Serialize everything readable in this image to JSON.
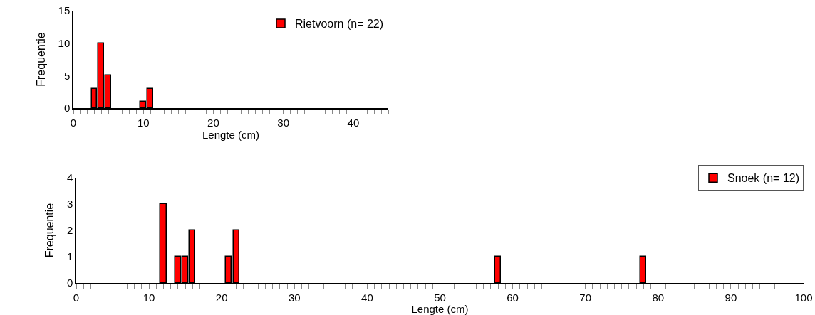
{
  "chart_data": [
    {
      "type": "bar",
      "x": [
        3,
        4,
        5,
        10,
        11
      ],
      "series": [
        {
          "name": "Rietvoorn (n= 22)",
          "color": "#ff0000",
          "values": [
            3,
            10,
            5,
            1,
            3
          ]
        }
      ],
      "xlabel": "Lengte (cm)",
      "ylabel": "Frequentie",
      "xlim": [
        0,
        45
      ],
      "ylim": [
        0,
        15
      ],
      "yticks": [
        0,
        5,
        10,
        15
      ],
      "xticks": [
        0,
        {
          "value": 1,
          "label": null
        },
        {
          "value": 2,
          "label": null
        },
        {
          "value": 3,
          "label": null
        },
        {
          "value": 4,
          "label": null
        },
        {
          "value": 5,
          "label": null
        },
        {
          "value": 6,
          "label": null
        },
        {
          "value": 7,
          "label": null
        },
        {
          "value": 8,
          "label": null
        },
        {
          "value": 9,
          "label": null
        },
        10,
        {
          "value": 11,
          "label": null
        },
        {
          "value": 12,
          "label": null
        },
        {
          "value": 13,
          "label": null
        },
        {
          "value": 14,
          "label": null
        },
        {
          "value": 15,
          "label": null
        },
        {
          "value": 16,
          "label": null
        },
        {
          "value": 17,
          "label": null
        },
        {
          "value": 18,
          "label": null
        },
        {
          "value": 19,
          "label": null
        },
        20,
        {
          "value": 21,
          "label": null
        },
        {
          "value": 22,
          "label": null
        },
        {
          "value": 23,
          "label": null
        },
        {
          "value": 24,
          "label": null
        },
        {
          "value": 25,
          "label": null
        },
        {
          "value": 26,
          "label": null
        },
        {
          "value": 27,
          "label": null
        },
        {
          "value": 28,
          "label": null
        },
        {
          "value": 29,
          "label": null
        },
        30,
        {
          "value": 31,
          "label": null
        },
        {
          "value": 32,
          "label": null
        },
        {
          "value": 33,
          "label": null
        },
        {
          "value": 34,
          "label": null
        },
        {
          "value": 35,
          "label": null
        },
        {
          "value": 36,
          "label": null
        },
        {
          "value": 37,
          "label": null
        },
        {
          "value": 38,
          "label": null
        },
        {
          "value": 39,
          "label": null
        },
        40,
        {
          "value": 41,
          "label": null
        },
        {
          "value": 42,
          "label": null
        },
        {
          "value": 43,
          "label": null
        },
        {
          "value": 44,
          "label": null
        },
        {
          "value": 45,
          "label": null
        }
      ],
      "legend": "top right"
    },
    {
      "type": "bar",
      "x": [
        12,
        14,
        15,
        16,
        21,
        22,
        58,
        78
      ],
      "series": [
        {
          "name": "Snoek (n= 12)",
          "color": "#ff0000",
          "values": [
            3,
            1,
            1,
            2,
            1,
            2,
            1,
            1
          ]
        }
      ],
      "xlabel": "Lengte (cm)",
      "ylabel": "Frequentie",
      "xlim": [
        0,
        100
      ],
      "ylim": [
        0,
        4
      ],
      "yticks": [
        0,
        1,
        2,
        3,
        4
      ],
      "xticks": [
        0,
        {
          "value": 1,
          "label": null
        },
        {
          "value": 2,
          "label": null
        },
        {
          "value": 3,
          "label": null
        },
        {
          "value": 4,
          "label": null
        },
        {
          "value": 5,
          "label": null
        },
        {
          "value": 6,
          "label": null
        },
        {
          "value": 7,
          "label": null
        },
        {
          "value": 8,
          "label": null
        },
        {
          "value": 9,
          "label": null
        },
        10,
        {
          "value": 11,
          "label": null
        },
        {
          "value": 12,
          "label": null
        },
        {
          "value": 13,
          "label": null
        },
        {
          "value": 14,
          "label": null
        },
        {
          "value": 15,
          "label": null
        },
        {
          "value": 16,
          "label": null
        },
        {
          "value": 17,
          "label": null
        },
        {
          "value": 18,
          "label": null
        },
        {
          "value": 19,
          "label": null
        },
        20,
        {
          "value": 21,
          "label": null
        },
        {
          "value": 22,
          "label": null
        },
        {
          "value": 23,
          "label": null
        },
        {
          "value": 24,
          "label": null
        },
        {
          "value": 25,
          "label": null
        },
        {
          "value": 26,
          "label": null
        },
        {
          "value": 27,
          "label": null
        },
        {
          "value": 28,
          "label": null
        },
        {
          "value": 29,
          "label": null
        },
        30,
        {
          "value": 31,
          "label": null
        },
        {
          "value": 32,
          "label": null
        },
        {
          "value": 33,
          "label": null
        },
        {
          "value": 34,
          "label": null
        },
        {
          "value": 35,
          "label": null
        },
        {
          "value": 36,
          "label": null
        },
        {
          "value": 37,
          "label": null
        },
        {
          "value": 38,
          "label": null
        },
        {
          "value": 39,
          "label": null
        },
        40,
        {
          "value": 41,
          "label": null
        },
        {
          "value": 42,
          "label": null
        },
        {
          "value": 43,
          "label": null
        },
        {
          "value": 44,
          "label": null
        },
        {
          "value": 45,
          "label": null
        },
        {
          "value": 46,
          "label": null
        },
        {
          "value": 47,
          "label": null
        },
        {
          "value": 48,
          "label": null
        },
        {
          "value": 49,
          "label": null
        },
        50,
        {
          "value": 51,
          "label": null
        },
        {
          "value": 52,
          "label": null
        },
        {
          "value": 53,
          "label": null
        },
        {
          "value": 54,
          "label": null
        },
        {
          "value": 55,
          "label": null
        },
        {
          "value": 56,
          "label": null
        },
        {
          "value": 57,
          "label": null
        },
        {
          "value": 58,
          "label": null
        },
        {
          "value": 59,
          "label": null
        },
        60,
        {
          "value": 61,
          "label": null
        },
        {
          "value": 62,
          "label": null
        },
        {
          "value": 63,
          "label": null
        },
        {
          "value": 64,
          "label": null
        },
        {
          "value": 65,
          "label": null
        },
        {
          "value": 66,
          "label": null
        },
        {
          "value": 67,
          "label": null
        },
        {
          "value": 68,
          "label": null
        },
        {
          "value": 69,
          "label": null
        },
        70,
        {
          "value": 71,
          "label": null
        },
        {
          "value": 72,
          "label": null
        },
        {
          "value": 73,
          "label": null
        },
        {
          "value": 74,
          "label": null
        },
        {
          "value": 75,
          "label": null
        },
        {
          "value": 76,
          "label": null
        },
        {
          "value": 77,
          "label": null
        },
        {
          "value": 78,
          "label": null
        },
        {
          "value": 79,
          "label": null
        },
        80,
        {
          "value": 81,
          "label": null
        },
        {
          "value": 82,
          "label": null
        },
        {
          "value": 83,
          "label": null
        },
        {
          "value": 84,
          "label": null
        },
        {
          "value": 85,
          "label": null
        },
        {
          "value": 86,
          "label": null
        },
        {
          "value": 87,
          "label": null
        },
        {
          "value": 88,
          "label": null
        },
        {
          "value": 89,
          "label": null
        },
        90,
        {
          "value": 91,
          "label": null
        },
        {
          "value": 92,
          "label": null
        },
        {
          "value": 93,
          "label": null
        },
        {
          "value": 94,
          "label": null
        },
        {
          "value": 95,
          "label": null
        },
        {
          "value": 96,
          "label": null
        },
        {
          "value": 97,
          "label": null
        },
        {
          "value": 98,
          "label": null
        },
        {
          "value": 99,
          "label": null
        },
        100
      ],
      "legend": "top right"
    }
  ]
}
